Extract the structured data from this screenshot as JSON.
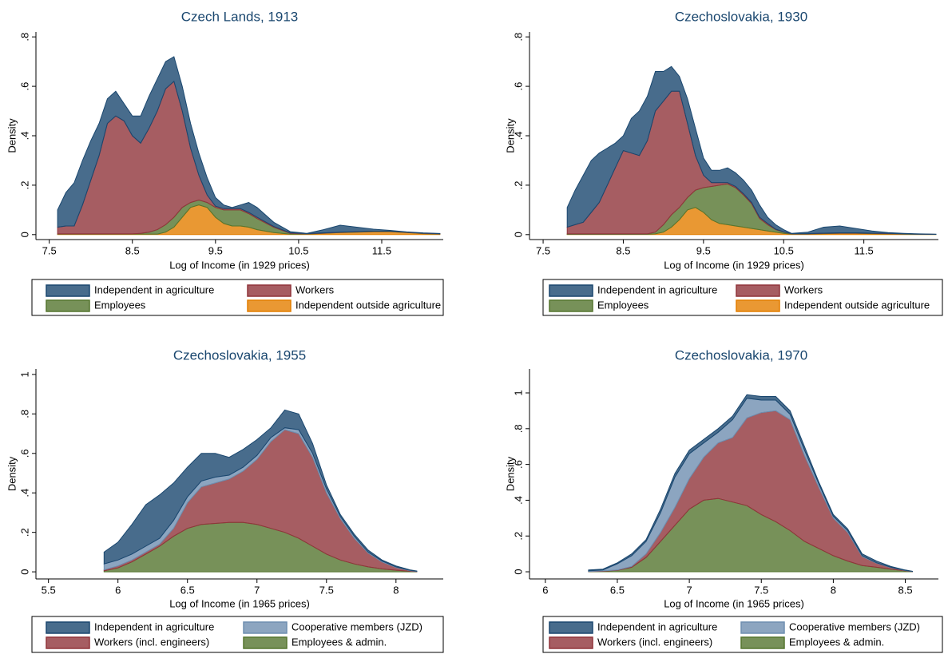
{
  "chart_data": [
    {
      "type": "area",
      "stacked": true,
      "title": "Czech Lands, 1913",
      "xlabel": "Log of Income (in 1929 prices)",
      "ylabel": "Density",
      "legend": "bottom",
      "xlim": [
        7.34,
        12.24
      ],
      "xticks": [
        7.5,
        8.5,
        9.5,
        10.5,
        11.5
      ],
      "ylim": [
        -0.02,
        0.82
      ],
      "yticks": [
        0,
        {
          "value": 0.2,
          "label": ".2"
        },
        {
          "value": 0.4,
          "label": ".4"
        },
        {
          "value": 0.6,
          "label": ".6"
        },
        {
          "value": 0.8,
          "label": ".8"
        }
      ],
      "x": [
        7.6,
        7.7,
        7.8,
        7.9,
        8.0,
        8.1,
        8.2,
        8.3,
        8.4,
        8.5,
        8.6,
        8.7,
        8.8,
        8.9,
        9.0,
        9.1,
        9.2,
        9.3,
        9.4,
        9.5,
        9.6,
        9.7,
        9.8,
        9.9,
        10.0,
        10.2,
        10.4,
        10.6,
        10.8,
        11.0,
        11.2,
        11.4,
        11.6,
        11.8,
        12.0,
        12.2
      ],
      "series": [
        {
          "name": "Independent in agriculture",
          "color": "#1a476f",
          "values": [
            0.07,
            0.135,
            0.175,
            0.18,
            0.16,
            0.13,
            0.1,
            0.1,
            0.07,
            0.08,
            0.11,
            0.13,
            0.13,
            0.11,
            0.1,
            0.1,
            0.1,
            0.09,
            0.07,
            0.035,
            0.015,
            0.005,
            0.015,
            0.04,
            0.04,
            0.017,
            0.005,
            0.001,
            0.013,
            0.028,
            0.018,
            0.008,
            0.003,
            0.001,
            0.001,
            0.001
          ]
        },
        {
          "name": "Workers",
          "color": "#90353b",
          "values": [
            0.027,
            0.032,
            0.032,
            0.117,
            0.217,
            0.317,
            0.447,
            0.477,
            0.457,
            0.397,
            0.365,
            0.42,
            0.48,
            0.55,
            0.55,
            0.39,
            0.22,
            0.1,
            0.03,
            0.005,
            0.005,
            0.005,
            0.005,
            0.005,
            0.005,
            0.003,
            0.002,
            0.001,
            0.001,
            0.001,
            0.001,
            0.001,
            0.001,
            0.001,
            0.001,
            0.001
          ]
        },
        {
          "name": "Employees",
          "color": "#55752f",
          "values": [
            0.001,
            0.001,
            0.001,
            0.001,
            0.001,
            0.001,
            0.001,
            0.001,
            0.001,
            0.001,
            0.003,
            0.008,
            0.018,
            0.03,
            0.04,
            0.04,
            0.02,
            0.02,
            0.02,
            0.04,
            0.055,
            0.065,
            0.065,
            0.055,
            0.045,
            0.022,
            0.003,
            0.001,
            0.001,
            0.001,
            0.001,
            0.001,
            0.001,
            0.001,
            0.001,
            0.001
          ]
        },
        {
          "name": "Independent outside agriculture",
          "color": "#e37e00",
          "values": [
            0.002,
            0.002,
            0.002,
            0.002,
            0.002,
            0.002,
            0.002,
            0.002,
            0.002,
            0.002,
            0.002,
            0.002,
            0.002,
            0.01,
            0.03,
            0.07,
            0.11,
            0.12,
            0.11,
            0.07,
            0.045,
            0.035,
            0.035,
            0.03,
            0.02,
            0.008,
            0.002,
            0.002,
            0.005,
            0.008,
            0.01,
            0.012,
            0.012,
            0.008,
            0.004,
            0.002
          ]
        }
      ]
    },
    {
      "type": "area",
      "stacked": true,
      "title": "Czechoslovakia, 1930",
      "xlabel": "Log of Income (in 1929 prices)",
      "ylabel": "Density",
      "legend": "bottom",
      "xlim": [
        7.33,
        12.43
      ],
      "xticks": [
        7.5,
        8.5,
        9.5,
        10.5,
        11.5
      ],
      "ylim": [
        -0.02,
        0.82
      ],
      "yticks": [
        0,
        {
          "value": 0.2,
          "label": ".2"
        },
        {
          "value": 0.4,
          "label": ".4"
        },
        {
          "value": 0.6,
          "label": ".6"
        },
        {
          "value": 0.8,
          "label": ".8"
        }
      ],
      "x": [
        7.8,
        7.9,
        8.0,
        8.1,
        8.2,
        8.3,
        8.4,
        8.5,
        8.6,
        8.7,
        8.8,
        8.9,
        9.0,
        9.1,
        9.2,
        9.3,
        9.4,
        9.5,
        9.6,
        9.7,
        9.8,
        9.9,
        10.0,
        10.1,
        10.2,
        10.3,
        10.4,
        10.5,
        10.6,
        10.8,
        11.0,
        11.2,
        11.4,
        11.6,
        11.8,
        12.0,
        12.2,
        12.4
      ],
      "series": [
        {
          "name": "Independent in agriculture",
          "color": "#1a476f",
          "values": [
            0.08,
            0.14,
            0.19,
            0.21,
            0.2,
            0.15,
            0.1,
            0.06,
            0.14,
            0.18,
            0.18,
            0.16,
            0.12,
            0.1,
            0.06,
            0.1,
            0.11,
            0.07,
            0.05,
            0.05,
            0.06,
            0.055,
            0.055,
            0.05,
            0.05,
            0.025,
            0.018,
            0.009,
            0.001,
            0.006,
            0.024,
            0.028,
            0.018,
            0.009,
            0.003,
            0.002,
            0.001,
            0.001
          ]
        },
        {
          "name": "Workers",
          "color": "#90353b",
          "values": [
            0.027,
            0.037,
            0.047,
            0.087,
            0.127,
            0.197,
            0.267,
            0.337,
            0.327,
            0.317,
            0.377,
            0.49,
            0.5,
            0.5,
            0.47,
            0.3,
            0.14,
            0.05,
            0.015,
            0.01,
            0.005,
            0.005,
            0.005,
            0.005,
            0.005,
            0.005,
            0.002,
            0.001,
            0.001,
            0.001,
            0.001,
            0.001,
            0.001,
            0.001,
            0.001,
            0,
            0,
            0
          ]
        },
        {
          "name": "Employees",
          "color": "#55752f",
          "values": [
            0.002,
            0.002,
            0.002,
            0.002,
            0.002,
            0.002,
            0.002,
            0.002,
            0.002,
            0.002,
            0.002,
            0.007,
            0.03,
            0.05,
            0.05,
            0.05,
            0.07,
            0.1,
            0.135,
            0.155,
            0.165,
            0.155,
            0.13,
            0.1,
            0.045,
            0.025,
            0.01,
            0.005,
            0.001,
            0.001,
            0.001,
            0.001,
            0.001,
            0.001,
            0.001,
            0.001,
            0.001,
            0
          ]
        },
        {
          "name": "Independent outside agriculture",
          "color": "#e37e00",
          "values": [
            0.001,
            0.001,
            0.001,
            0.001,
            0.001,
            0.001,
            0.001,
            0.001,
            0.001,
            0.001,
            0.001,
            0.003,
            0.01,
            0.03,
            0.06,
            0.1,
            0.11,
            0.09,
            0.06,
            0.045,
            0.04,
            0.035,
            0.03,
            0.025,
            0.02,
            0.015,
            0.01,
            0.005,
            0.002,
            0.002,
            0.004,
            0.005,
            0.005,
            0.004,
            0.003,
            0.002,
            0.001,
            0.001
          ]
        }
      ]
    },
    {
      "type": "area",
      "stacked": true,
      "title": "Czechoslovakia, 1955",
      "xlabel": "Log of Income (in 1965 prices)",
      "ylabel": "Density",
      "legend": "bottom",
      "xlim": [
        5.41,
        8.34
      ],
      "xticks": [
        5.5,
        6,
        6.5,
        7,
        7.5,
        8
      ],
      "ylim": [
        -0.036,
        1.028
      ],
      "yticks": [
        0,
        {
          "value": 0.2,
          "label": ".2"
        },
        {
          "value": 0.4,
          "label": ".4"
        },
        {
          "value": 0.6,
          "label": ".6"
        },
        {
          "value": 0.8,
          "label": ".8"
        },
        1
      ],
      "x": [
        5.9,
        6.0,
        6.1,
        6.2,
        6.3,
        6.4,
        6.5,
        6.6,
        6.7,
        6.8,
        6.9,
        7.0,
        7.1,
        7.2,
        7.3,
        7.4,
        7.5,
        7.6,
        7.7,
        7.8,
        7.9,
        8.0,
        8.1,
        8.15
      ],
      "series": [
        {
          "name": "Independent in agriculture",
          "color": "#1a476f",
          "values": [
            0.06,
            0.09,
            0.15,
            0.21,
            0.22,
            0.19,
            0.15,
            0.14,
            0.12,
            0.09,
            0.09,
            0.08,
            0.05,
            0.09,
            0.08,
            0.05,
            0.02,
            0.01,
            0.01,
            0.01,
            0.005,
            0.005,
            0.002,
            0.001
          ]
        },
        {
          "name": "Cooperative members (JZD)",
          "color": "#6f8fb0",
          "values": [
            0.03,
            0.03,
            0.03,
            0.03,
            0.03,
            0.04,
            0.03,
            0.03,
            0.03,
            0.02,
            0.02,
            0.02,
            0.02,
            0.01,
            0.02,
            0.02,
            0.02,
            0.01,
            0.01,
            0.005,
            0.005,
            0.003,
            0.002,
            0.001
          ]
        },
        {
          "name": "Workers (incl. engineers)",
          "color": "#90353b",
          "values": [
            0.005,
            0.01,
            0.01,
            0.01,
            0.01,
            0.04,
            0.13,
            0.19,
            0.205,
            0.22,
            0.26,
            0.33,
            0.44,
            0.52,
            0.53,
            0.45,
            0.31,
            0.21,
            0.13,
            0.07,
            0.035,
            0.014,
            0.003,
            0.001
          ]
        },
        {
          "name": "Employees & admin.",
          "color": "#55752f",
          "values": [
            0.005,
            0.02,
            0.05,
            0.09,
            0.13,
            0.18,
            0.22,
            0.24,
            0.245,
            0.25,
            0.25,
            0.24,
            0.22,
            0.2,
            0.17,
            0.13,
            0.09,
            0.06,
            0.04,
            0.025,
            0.015,
            0.008,
            0.003,
            0.001
          ]
        }
      ]
    },
    {
      "type": "area",
      "stacked": true,
      "title": "Czechoslovakia, 1970",
      "xlabel": "Log of Income (in 1965 prices)",
      "ylabel": "Density",
      "legend": "bottom",
      "xlim": [
        5.89,
        8.73
      ],
      "xticks": [
        6,
        6.5,
        7,
        7.5,
        8,
        8.5
      ],
      "ylim": [
        -0.04,
        1.134
      ],
      "yticks": [
        0,
        {
          "value": 0.2,
          "label": ".2"
        },
        {
          "value": 0.4,
          "label": ".4"
        },
        {
          "value": 0.6,
          "label": ".6"
        },
        {
          "value": 0.8,
          "label": ".8"
        },
        1
      ],
      "x": [
        6.3,
        6.4,
        6.5,
        6.6,
        6.7,
        6.8,
        6.9,
        7.0,
        7.1,
        7.2,
        7.3,
        7.4,
        7.5,
        7.6,
        7.7,
        7.8,
        7.9,
        8.0,
        8.1,
        8.2,
        8.3,
        8.4,
        8.5,
        8.55
      ],
      "series": [
        {
          "name": "Independent in agriculture",
          "color": "#1a476f",
          "values": [
            0.005,
            0.005,
            0.005,
            0.01,
            0.01,
            0.02,
            0.02,
            0.02,
            0.02,
            0.02,
            0.02,
            0.02,
            0.02,
            0.02,
            0.02,
            0.02,
            0.01,
            0.01,
            0.01,
            0.01,
            0.01,
            0.005,
            0.002,
            0.001
          ]
        },
        {
          "name": "Cooperative members (JZD)",
          "color": "#6f8fb0",
          "values": [
            0.003,
            0.005,
            0.035,
            0.06,
            0.07,
            0.11,
            0.17,
            0.14,
            0.08,
            0.06,
            0.1,
            0.11,
            0.07,
            0.06,
            0.03,
            0.03,
            0.02,
            0.01,
            0.01,
            0.005,
            0.002,
            0.002,
            0.001,
            0
          ]
        },
        {
          "name": "Workers (incl. engineers)",
          "color": "#90353b",
          "values": [
            0.001,
            0.002,
            0.002,
            0.005,
            0.02,
            0.05,
            0.1,
            0.17,
            0.24,
            0.31,
            0.36,
            0.49,
            0.57,
            0.62,
            0.62,
            0.48,
            0.34,
            0.21,
            0.16,
            0.05,
            0.023,
            0.008,
            0.002,
            0.001
          ]
        },
        {
          "name": "Employees & admin.",
          "color": "#55752f",
          "values": [
            0.001,
            0.003,
            0.008,
            0.025,
            0.08,
            0.17,
            0.26,
            0.35,
            0.4,
            0.41,
            0.39,
            0.37,
            0.32,
            0.28,
            0.23,
            0.17,
            0.13,
            0.09,
            0.06,
            0.035,
            0.025,
            0.015,
            0.005,
            0.001
          ]
        }
      ]
    }
  ]
}
